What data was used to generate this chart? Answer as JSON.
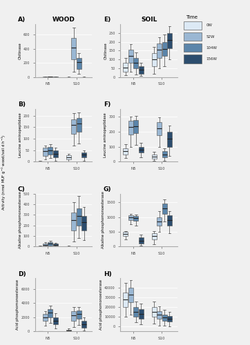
{
  "title_wood": "WOOD",
  "title_soil": "SOIL",
  "legend_title": "Time",
  "legend_labels": [
    "0W",
    "52W",
    "104W",
    "156W"
  ],
  "x_labels": [
    "N5",
    "S10"
  ],
  "panel_labels_wood": [
    "A)",
    "B)",
    "C)",
    "D)"
  ],
  "panel_labels_soil": [
    "E)",
    "F)",
    "G)",
    "H)"
  ],
  "y_labels": [
    "Chitinase",
    "Leucine aminopeptidase",
    "Alkaline phosphomonoesterase",
    "Acid phosphomonoesterase"
  ],
  "datasets": {
    "wood_chitinase": {
      "N5": {
        "0W": {
          "q1": 0,
          "med": 0,
          "q3": 1,
          "whislo": 0,
          "whishi": 2
        },
        "52W": {
          "q1": 0,
          "med": 1,
          "q3": 3,
          "whislo": 0,
          "whishi": 5
        },
        "104W": {
          "q1": 1,
          "med": 4,
          "q3": 6,
          "whislo": 0,
          "whishi": 8
        },
        "156W": {
          "q1": 0,
          "med": 2,
          "q3": 4,
          "whislo": 0,
          "whishi": 6
        }
      },
      "S10": {
        "0W": {
          "q1": 0,
          "med": 1,
          "q3": 2,
          "whislo": 0,
          "whishi": 3
        },
        "52W": {
          "q1": 250,
          "med": 420,
          "q3": 550,
          "whislo": 80,
          "whishi": 700
        },
        "104W": {
          "q1": 110,
          "med": 210,
          "q3": 270,
          "whislo": 50,
          "whishi": 340
        },
        "156W": {
          "q1": 0,
          "med": 1,
          "q3": 2,
          "whislo": 0,
          "whishi": 3
        }
      }
    },
    "wood_leu": {
      "N5": {
        "0W": {
          "q1": 0,
          "med": 1,
          "q3": 2,
          "whislo": 0,
          "whishi": 3
        },
        "52W": {
          "q1": 25,
          "med": 45,
          "q3": 60,
          "whislo": 10,
          "whishi": 70
        },
        "104W": {
          "q1": 30,
          "med": 50,
          "q3": 65,
          "whislo": 15,
          "whishi": 75
        },
        "156W": {
          "q1": 20,
          "med": 35,
          "q3": 50,
          "whislo": 5,
          "whishi": 60
        }
      },
      "S10": {
        "0W": {
          "q1": 10,
          "med": 20,
          "q3": 28,
          "whislo": 2,
          "whishi": 35
        },
        "52W": {
          "q1": 120,
          "med": 160,
          "q3": 185,
          "whislo": 70,
          "whishi": 210
        },
        "104W": {
          "q1": 130,
          "med": 165,
          "q3": 190,
          "whislo": 80,
          "whishi": 215
        },
        "156W": {
          "q1": 20,
          "med": 30,
          "q3": 40,
          "whislo": 5,
          "whishi": 50
        }
      }
    },
    "wood_alkphos": {
      "N5": {
        "0W": {
          "q1": 0,
          "med": 1,
          "q3": 3,
          "whislo": 0,
          "whishi": 5
        },
        "52W": {
          "q1": 5,
          "med": 15,
          "q3": 25,
          "whislo": 0,
          "whishi": 40
        },
        "104W": {
          "q1": 10,
          "med": 25,
          "q3": 40,
          "whislo": 2,
          "whishi": 55
        },
        "156W": {
          "q1": 5,
          "med": 15,
          "q3": 25,
          "whislo": 0,
          "whishi": 35
        }
      },
      "S10": {
        "0W": {
          "q1": 0,
          "med": 2,
          "q3": 4,
          "whislo": 0,
          "whishi": 7
        },
        "52W": {
          "q1": 150,
          "med": 250,
          "q3": 320,
          "whislo": 50,
          "whishi": 420
        },
        "104W": {
          "q1": 200,
          "med": 290,
          "q3": 360,
          "whislo": 80,
          "whishi": 480
        },
        "156W": {
          "q1": 150,
          "med": 230,
          "q3": 290,
          "whislo": 60,
          "whishi": 370
        }
      }
    },
    "wood_acidphos": {
      "N5": {
        "0W": {
          "q1": 0,
          "med": 10,
          "q3": 20,
          "whislo": 0,
          "whishi": 30
        },
        "52W": {
          "q1": 1500,
          "med": 2000,
          "q3": 2400,
          "whislo": 800,
          "whishi": 2800
        },
        "104W": {
          "q1": 2000,
          "med": 2600,
          "q3": 3100,
          "whislo": 1200,
          "whishi": 3600
        },
        "156W": {
          "q1": 1000,
          "med": 1500,
          "q3": 2000,
          "whislo": 400,
          "whishi": 2500
        }
      },
      "S10": {
        "0W": {
          "q1": 0,
          "med": 100,
          "q3": 200,
          "whislo": 0,
          "whishi": 400
        },
        "52W": {
          "q1": 1500,
          "med": 2200,
          "q3": 2800,
          "whislo": 600,
          "whishi": 3400
        },
        "104W": {
          "q1": 1800,
          "med": 2400,
          "q3": 2900,
          "whislo": 900,
          "whishi": 3400
        },
        "156W": {
          "q1": 500,
          "med": 1000,
          "q3": 1500,
          "whislo": 100,
          "whishi": 2000
        }
      }
    },
    "soil_chitinase": {
      "N5": {
        "0W": {
          "q1": 30,
          "med": 55,
          "q3": 80,
          "whislo": 10,
          "whishi": 110
        },
        "52W": {
          "q1": 80,
          "med": 120,
          "q3": 155,
          "whislo": 30,
          "whishi": 185
        },
        "104W": {
          "q1": 50,
          "med": 80,
          "q3": 110,
          "whislo": 15,
          "whishi": 140
        },
        "156W": {
          "q1": 20,
          "med": 40,
          "q3": 60,
          "whislo": 5,
          "whishi": 80
        }
      },
      "S10": {
        "0W": {
          "q1": 60,
          "med": 100,
          "q3": 135,
          "whislo": 20,
          "whishi": 170
        },
        "52W": {
          "q1": 110,
          "med": 155,
          "q3": 190,
          "whislo": 50,
          "whishi": 225
        },
        "104W": {
          "q1": 120,
          "med": 160,
          "q3": 200,
          "whislo": 60,
          "whishi": 240
        },
        "156W": {
          "q1": 165,
          "med": 210,
          "q3": 250,
          "whislo": 100,
          "whishi": 290
        }
      }
    },
    "soil_leu": {
      "N5": {
        "0W": {
          "q1": 50,
          "med": 70,
          "q3": 90,
          "whislo": 25,
          "whishi": 115
        },
        "52W": {
          "q1": 180,
          "med": 230,
          "q3": 270,
          "whislo": 100,
          "whishi": 300
        },
        "104W": {
          "q1": 190,
          "med": 235,
          "q3": 275,
          "whislo": 110,
          "whishi": 305
        },
        "156W": {
          "q1": 60,
          "med": 80,
          "q3": 100,
          "whislo": 30,
          "whishi": 125
        }
      },
      "S10": {
        "0W": {
          "q1": 20,
          "med": 35,
          "q3": 50,
          "whislo": 5,
          "whishi": 65
        },
        "52W": {
          "q1": 175,
          "med": 220,
          "q3": 260,
          "whislo": 100,
          "whishi": 295
        },
        "104W": {
          "q1": 30,
          "med": 50,
          "q3": 70,
          "whislo": 8,
          "whishi": 90
        },
        "156W": {
          "q1": 100,
          "med": 155,
          "q3": 200,
          "whislo": 40,
          "whishi": 240
        }
      }
    },
    "soil_alkphos": {
      "N5": {
        "0W": {
          "q1": 350,
          "med": 430,
          "q3": 490,
          "whislo": 230,
          "whishi": 530
        },
        "52W": {
          "q1": 900,
          "med": 990,
          "q3": 1050,
          "whislo": 750,
          "whishi": 1100
        },
        "104W": {
          "q1": 870,
          "med": 960,
          "q3": 1030,
          "whislo": 700,
          "whishi": 1080
        },
        "156W": {
          "q1": 100,
          "med": 200,
          "q3": 300,
          "whislo": 20,
          "whishi": 400
        }
      },
      "S10": {
        "0W": {
          "q1": 250,
          "med": 350,
          "q3": 440,
          "whislo": 80,
          "whishi": 530
        },
        "52W": {
          "q1": 700,
          "med": 850,
          "q3": 990,
          "whislo": 500,
          "whishi": 1200
        },
        "104W": {
          "q1": 1100,
          "med": 1300,
          "q3": 1450,
          "whislo": 850,
          "whishi": 1600
        },
        "156W": {
          "q1": 700,
          "med": 900,
          "q3": 1050,
          "whislo": 450,
          "whishi": 1200
        }
      }
    },
    "soil_acidphos": {
      "N5": {
        "0W": {
          "q1": 20000,
          "med": 28000,
          "q3": 35000,
          "whislo": 10000,
          "whishi": 45000
        },
        "52W": {
          "q1": 25000,
          "med": 33000,
          "q3": 40000,
          "whislo": 12000,
          "whishi": 48000
        },
        "104W": {
          "q1": 10000,
          "med": 15000,
          "q3": 20000,
          "whislo": 4000,
          "whishi": 26000
        },
        "156W": {
          "q1": 8000,
          "med": 13000,
          "q3": 18000,
          "whislo": 2000,
          "whishi": 24000
        }
      },
      "S10": {
        "0W": {
          "q1": 10000,
          "med": 15000,
          "q3": 20000,
          "whislo": 3000,
          "whishi": 26000
        },
        "52W": {
          "q1": 8000,
          "med": 12000,
          "q3": 16000,
          "whislo": 1000,
          "whishi": 21000
        },
        "104W": {
          "q1": 6000,
          "med": 9000,
          "q3": 12000,
          "whislo": 500,
          "whishi": 17000
        },
        "156W": {
          "q1": 5000,
          "med": 8000,
          "q3": 11000,
          "whislo": 200,
          "whishi": 15000
        }
      }
    }
  },
  "ylims": {
    "wood_chitinase": [
      0,
      750
    ],
    "wood_leu": [
      0,
      230
    ],
    "wood_alkphos": [
      0,
      500
    ],
    "wood_acidphos": [
      0,
      7500
    ],
    "soil_chitinase": [
      0,
      300
    ],
    "soil_leu": [
      0,
      350
    ],
    "soil_alkphos": [
      0,
      1800
    ],
    "soil_acidphos": [
      -5000,
      50000
    ]
  },
  "yticks": {
    "wood_chitinase": [
      0,
      200,
      400,
      600
    ],
    "wood_leu": [
      0,
      50,
      100,
      150,
      200
    ],
    "wood_alkphos": [
      0,
      100,
      200,
      300,
      400,
      500
    ],
    "wood_acidphos": [
      0,
      2000,
      4000,
      6000
    ],
    "soil_chitinase": [
      0,
      50,
      100,
      150,
      200,
      250
    ],
    "soil_leu": [
      0,
      100,
      200,
      300
    ],
    "soil_alkphos": [
      0,
      500,
      1000,
      1500
    ],
    "soil_acidphos": [
      0,
      10000,
      20000,
      30000,
      40000
    ]
  },
  "colors": [
    "#dce9f5",
    "#9ab7d3",
    "#5b85aa",
    "#2c4d6e"
  ],
  "edge_color": "#666666",
  "median_color": "#222222",
  "whisker_color": "#444444",
  "box_width": 0.17,
  "background_color": "#f0f0f0",
  "grid_color": "#ffffff"
}
